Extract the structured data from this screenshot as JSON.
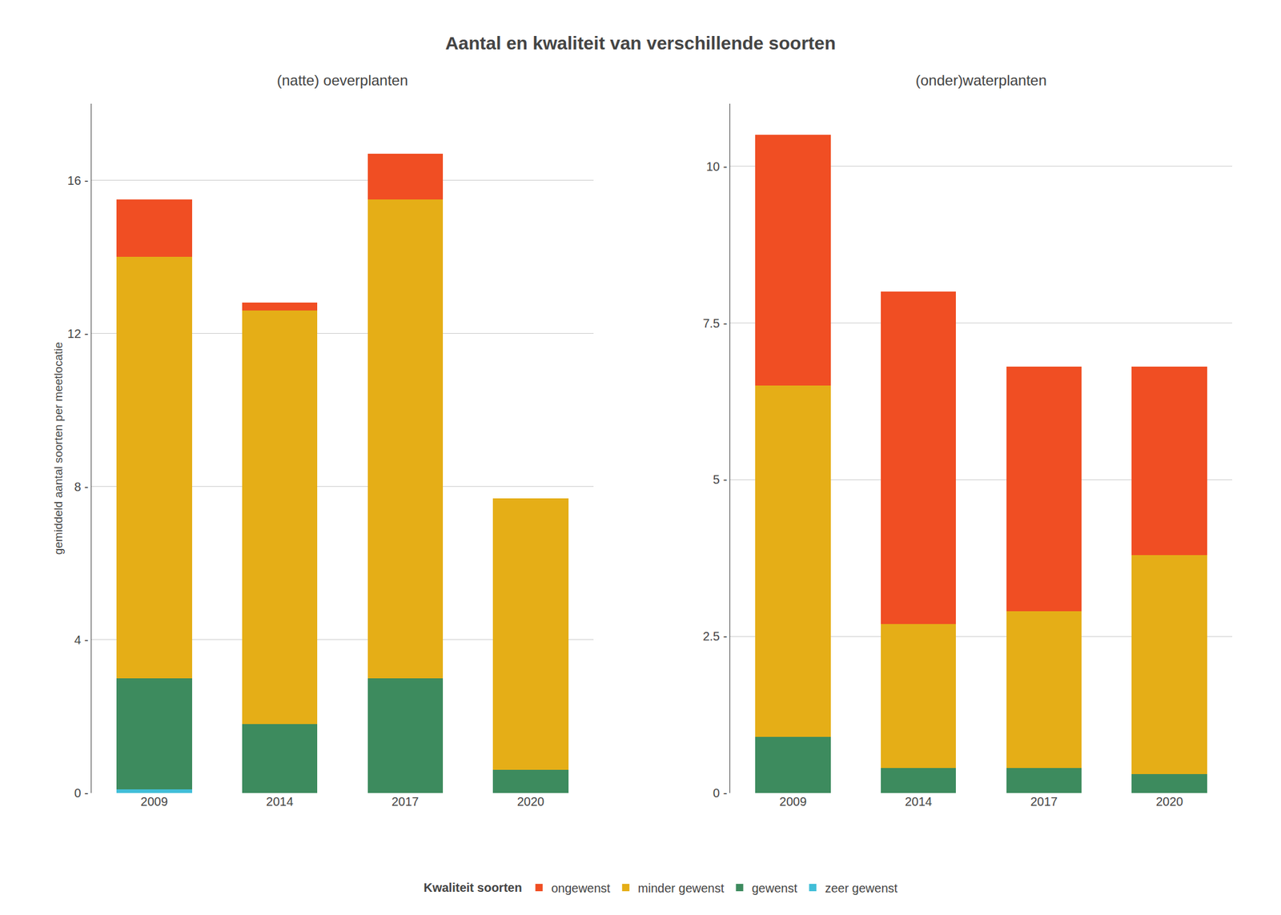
{
  "title": "Aantal en kwaliteit van verschillende soorten",
  "legend_title": "Kwaliteit soorten",
  "chart_data": [
    {
      "type": "bar",
      "stacked": true,
      "grid": true,
      "legend": "bottom",
      "title": "(natte) oeverplanten",
      "ylabel": "gemiddeld aantal soorten per meetlocatie",
      "categories": [
        "2009",
        "2014",
        "2017",
        "2020"
      ],
      "series": [
        {
          "name": "zeer gewenst",
          "color": "#41BED8",
          "values": [
            0.1,
            0.0,
            0.0,
            0.0
          ]
        },
        {
          "name": "gewenst",
          "color": "#3D8B5E",
          "values": [
            2.9,
            1.8,
            3.0,
            0.6
          ]
        },
        {
          "name": "minder gewenst",
          "color": "#E5AE17",
          "values": [
            11.0,
            10.8,
            12.5,
            7.1
          ]
        },
        {
          "name": "ongewenst",
          "color": "#F04E23",
          "values": [
            1.5,
            0.2,
            1.2,
            0.0
          ]
        }
      ],
      "ylim": [
        0,
        18
      ],
      "yticks": [
        {
          "value": 0,
          "label": "0 -"
        },
        {
          "value": 4,
          "label": "4 -"
        },
        {
          "value": 8,
          "label": "8 -"
        },
        {
          "value": 12,
          "label": "12 -"
        },
        {
          "value": 16,
          "label": "16 -"
        }
      ]
    },
    {
      "type": "bar",
      "stacked": true,
      "grid": true,
      "legend": "bottom",
      "title": "(onder)waterplanten",
      "categories": [
        "2009",
        "2014",
        "2017",
        "2020"
      ],
      "series": [
        {
          "name": "zeer gewenst",
          "color": "#41BED8",
          "values": [
            0.0,
            0.0,
            0.0,
            0.0
          ]
        },
        {
          "name": "gewenst",
          "color": "#3D8B5E",
          "values": [
            0.9,
            0.4,
            0.4,
            0.3
          ]
        },
        {
          "name": "minder gewenst",
          "color": "#E5AE17",
          "values": [
            5.6,
            2.3,
            2.5,
            3.5
          ]
        },
        {
          "name": "ongewenst",
          "color": "#F04E23",
          "values": [
            4.0,
            5.3,
            3.9,
            3.0
          ]
        }
      ],
      "ylim": [
        0,
        11
      ],
      "yticks": [
        {
          "value": 0.0,
          "label": "0 -"
        },
        {
          "value": 2.5,
          "label": "2.5 -"
        },
        {
          "value": 5.0,
          "label": "5 -"
        },
        {
          "value": 7.5,
          "label": "7.5 -"
        },
        {
          "value": 10.0,
          "label": "10 -"
        }
      ]
    }
  ]
}
